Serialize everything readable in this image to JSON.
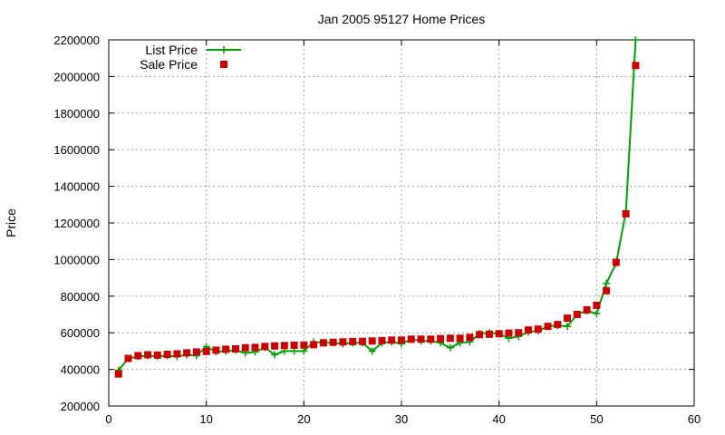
{
  "chart_data": {
    "type": "line",
    "title": "Jan 2005 95127 Home Prices",
    "ylabel": "Price",
    "xlim": [
      0,
      60
    ],
    "ylim": [
      200000,
      2200000
    ],
    "xticks": [
      0,
      10,
      20,
      30,
      40,
      50,
      60
    ],
    "yticks": [
      200000,
      400000,
      600000,
      800000,
      1000000,
      1200000,
      1400000,
      1600000,
      1800000,
      2000000,
      2200000
    ],
    "grid": true,
    "legend": "top-left",
    "x": [
      1,
      2,
      3,
      4,
      5,
      6,
      7,
      8,
      9,
      10,
      11,
      12,
      13,
      14,
      15,
      16,
      17,
      18,
      19,
      20,
      21,
      22,
      23,
      24,
      25,
      26,
      27,
      28,
      29,
      30,
      31,
      32,
      33,
      34,
      35,
      36,
      37,
      38,
      39,
      40,
      41,
      42,
      43,
      44,
      45,
      46,
      47,
      48,
      49,
      50,
      51,
      52,
      53,
      54
    ],
    "series": [
      {
        "name": "List Price",
        "style": "line-plus",
        "color": "#00a000",
        "values": [
          395000,
          460000,
          470000,
          475000,
          470000,
          475000,
          470000,
          480000,
          475000,
          525000,
          495000,
          500000,
          505000,
          490000,
          495000,
          520000,
          480000,
          500000,
          500000,
          500000,
          550000,
          545000,
          545000,
          540000,
          545000,
          545000,
          500000,
          545000,
          550000,
          540000,
          565000,
          555000,
          555000,
          545000,
          518000,
          545000,
          550000,
          595000,
          600000,
          595000,
          570000,
          580000,
          605000,
          610000,
          635000,
          640000,
          635000,
          700000,
          720000,
          705000,
          870000,
          980000,
          1260000,
          2200000
        ]
      },
      {
        "name": "Sale Price",
        "style": "square",
        "color": "#cc0000",
        "values": [
          375000,
          460000,
          475000,
          480000,
          478000,
          482000,
          485000,
          490000,
          495000,
          498000,
          505000,
          510000,
          512000,
          518000,
          520000,
          525000,
          528000,
          530000,
          532000,
          533000,
          535000,
          545000,
          548000,
          550000,
          552000,
          553000,
          555000,
          557000,
          560000,
          560000,
          565000,
          565000,
          565000,
          568000,
          570000,
          570000,
          575000,
          590000,
          592000,
          595000,
          598000,
          600000,
          615000,
          620000,
          635000,
          645000,
          680000,
          700000,
          725000,
          750000,
          830000,
          985000,
          1250000,
          2060000
        ]
      }
    ]
  }
}
